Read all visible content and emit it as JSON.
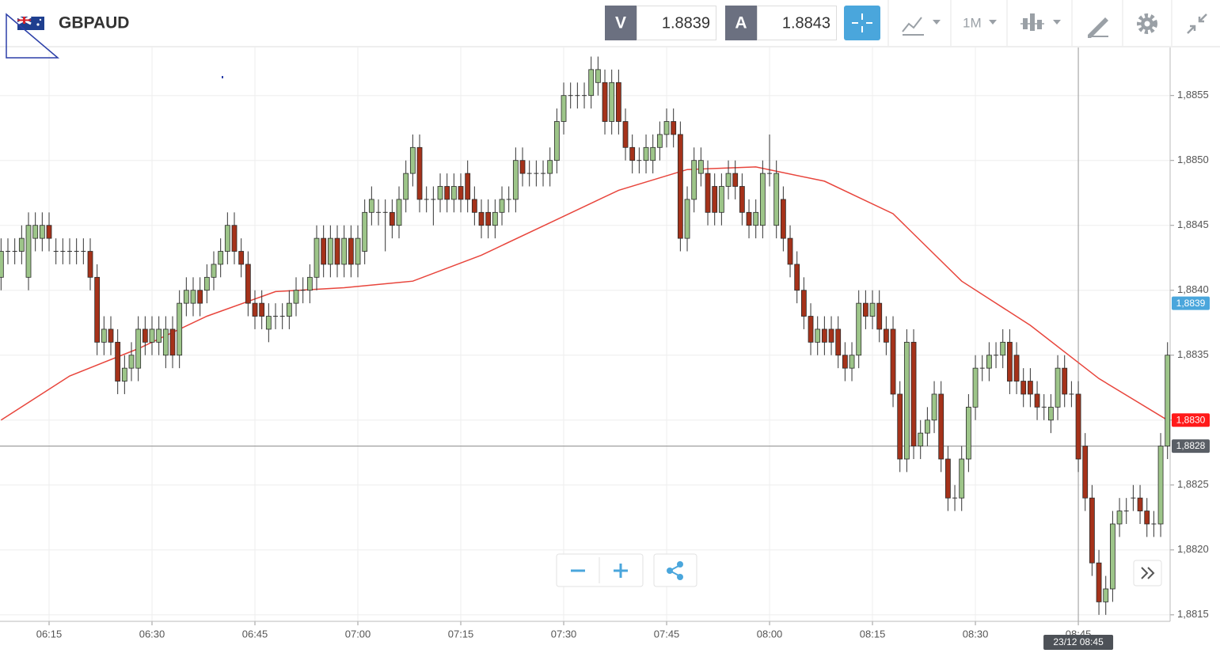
{
  "header": {
    "symbol": "GBPAUD",
    "bid_label": "V",
    "bid": 1.8839,
    "ask_label": "A",
    "ask": 1.8843,
    "timeframe": "1M"
  },
  "chart_data": {
    "type": "candlestick",
    "x": [
      "06:08",
      "06:09",
      "06:10",
      "06:11",
      "06:12",
      "06:13",
      "06:14",
      "06:15",
      "06:16",
      "06:17",
      "06:18",
      "06:19",
      "06:20",
      "06:21",
      "06:22",
      "06:23",
      "06:24",
      "06:25",
      "06:26",
      "06:27",
      "06:28",
      "06:29",
      "06:30",
      "06:31",
      "06:32",
      "06:33",
      "06:34",
      "06:35",
      "06:36",
      "06:37",
      "06:38",
      "06:39",
      "06:40",
      "06:41",
      "06:42",
      "06:43",
      "06:44",
      "06:45",
      "06:46",
      "06:47",
      "06:48",
      "06:49",
      "06:50",
      "06:51",
      "06:52",
      "06:53",
      "06:54",
      "06:55",
      "06:56",
      "06:57",
      "06:58",
      "06:59",
      "07:00",
      "07:01",
      "07:02",
      "07:03",
      "07:04",
      "07:05",
      "07:06",
      "07:07",
      "07:08",
      "07:09",
      "07:10",
      "07:11",
      "07:12",
      "07:13",
      "07:14",
      "07:15",
      "07:16",
      "07:17",
      "07:18",
      "07:19",
      "07:20",
      "07:21",
      "07:22",
      "07:23",
      "07:24",
      "07:25",
      "07:26",
      "07:27",
      "07:28",
      "07:29",
      "07:30",
      "07:31",
      "07:32",
      "07:33",
      "07:34",
      "07:35",
      "07:36",
      "07:37",
      "07:38",
      "07:39",
      "07:40",
      "07:41",
      "07:42",
      "07:43",
      "07:44",
      "07:45",
      "07:46",
      "07:47",
      "07:48",
      "07:49",
      "07:50",
      "07:51",
      "07:52",
      "07:53",
      "07:54",
      "07:55",
      "07:56",
      "07:57",
      "07:58",
      "07:59",
      "08:00",
      "08:01",
      "08:02",
      "08:03",
      "08:04",
      "08:05",
      "08:06",
      "08:07",
      "08:08",
      "08:09",
      "08:10",
      "08:11",
      "08:12",
      "08:13",
      "08:14",
      "08:15",
      "08:16",
      "08:17",
      "08:18",
      "08:19",
      "08:20",
      "08:21",
      "08:22",
      "08:23",
      "08:24",
      "08:25",
      "08:26",
      "08:27",
      "08:28",
      "08:29",
      "08:30",
      "08:31",
      "08:32",
      "08:33",
      "08:34",
      "08:35",
      "08:36",
      "08:37",
      "08:38",
      "08:39",
      "08:40",
      "08:41",
      "08:42",
      "08:43",
      "08:44",
      "08:45",
      "08:46",
      "08:47",
      "08:48",
      "08:49",
      "08:50",
      "08:51",
      "08:52",
      "08:53",
      "08:54",
      "08:55",
      "08:56",
      "08:57",
      "08:58"
    ],
    "open": [
      1.8841,
      1.8843,
      1.8843,
      1.8843,
      1.8841,
      1.8844,
      1.8844,
      1.8845,
      1.8843,
      1.8843,
      1.8843,
      1.8843,
      1.8843,
      1.8843,
      1.8841,
      1.8836,
      1.8837,
      1.8836,
      1.8833,
      1.8834,
      1.8834,
      1.8837,
      1.8836,
      1.8836,
      1.8835,
      1.8837,
      1.8835,
      1.8839,
      1.8839,
      1.884,
      1.884,
      1.8841,
      1.8842,
      1.8843,
      1.8845,
      1.8843,
      1.8842,
      1.8839,
      1.8839,
      1.8837,
      1.8838,
      1.8838,
      1.8838,
      1.8839,
      1.884,
      1.884,
      1.8841,
      1.8844,
      1.8842,
      1.8844,
      1.8842,
      1.8844,
      1.8842,
      1.8843,
      1.8846,
      1.8846,
      1.8846,
      1.8846,
      1.8845,
      1.8847,
      1.8849,
      1.8851,
      1.8847,
      1.8847,
      1.8847,
      1.8848,
      1.8847,
      1.8848,
      1.8849,
      1.8847,
      1.8846,
      1.8846,
      1.8845,
      1.8846,
      1.8847,
      1.8847,
      1.885,
      1.8849,
      1.8849,
      1.8849,
      1.8849,
      1.885,
      1.8853,
      1.8855,
      1.8855,
      1.8855,
      1.8855,
      1.8856,
      1.8856,
      1.8853,
      1.8856,
      1.8853,
      1.8851,
      1.885,
      1.885,
      1.885,
      1.8851,
      1.8852,
      1.8853,
      1.8852,
      1.8844,
      1.8847,
      1.8849,
      1.8849,
      1.8848,
      1.8846,
      1.8848,
      1.8849,
      1.8848,
      1.8846,
      1.8845,
      1.8845,
      1.8849,
      1.8845,
      1.8847,
      1.8844,
      1.8842,
      1.884,
      1.8838,
      1.8836,
      1.8837,
      1.8837,
      1.8837,
      1.8835,
      1.8834,
      1.8835,
      1.8839,
      1.8838,
      1.8839,
      1.8837,
      1.8837,
      1.8832,
      1.8827,
      1.8836,
      1.8828,
      1.8829,
      1.883,
      1.8832,
      1.8827,
      1.8824,
      1.8824,
      1.8827,
      1.8831,
      1.8834,
      1.8834,
      1.8835,
      1.8835,
      1.8836,
      1.8835,
      1.8833,
      1.8833,
      1.8832,
      1.8831,
      1.883,
      1.8831,
      1.8834,
      1.8832,
      1.8832,
      1.8828,
      1.8824,
      1.8819,
      1.8816,
      1.8817,
      1.8822,
      1.8823,
      1.8824,
      1.8824,
      1.8823,
      1.8822,
      1.8822,
      1.8828
    ],
    "high": [
      1.8844,
      1.8844,
      1.8844,
      1.8845,
      1.8846,
      1.8846,
      1.8846,
      1.8846,
      1.8844,
      1.8844,
      1.8844,
      1.8844,
      1.8844,
      1.8844,
      1.8842,
      1.8838,
      1.8838,
      1.8837,
      1.8835,
      1.8836,
      1.8838,
      1.8838,
      1.8838,
      1.8838,
      1.8838,
      1.8838,
      1.884,
      1.8841,
      1.8841,
      1.8841,
      1.8842,
      1.8843,
      1.8844,
      1.8846,
      1.8846,
      1.8844,
      1.8843,
      1.884,
      1.884,
      1.8839,
      1.8839,
      1.8839,
      1.884,
      1.8841,
      1.8841,
      1.8842,
      1.8845,
      1.8845,
      1.8845,
      1.8845,
      1.8845,
      1.8845,
      1.8845,
      1.8847,
      1.8848,
      1.8847,
      1.8847,
      1.8847,
      1.8848,
      1.885,
      1.8852,
      1.8852,
      1.8848,
      1.8848,
      1.8849,
      1.8849,
      1.8849,
      1.8849,
      1.885,
      1.8848,
      1.8847,
      1.8847,
      1.8847,
      1.8848,
      1.8848,
      1.8851,
      1.8851,
      1.885,
      1.885,
      1.885,
      1.8851,
      1.8854,
      1.8856,
      1.8856,
      1.8856,
      1.8856,
      1.8858,
      1.8858,
      1.8857,
      1.8857,
      1.8857,
      1.8854,
      1.8852,
      1.8851,
      1.8852,
      1.8852,
      1.8853,
      1.8854,
      1.8854,
      1.8853,
      1.8848,
      1.8851,
      1.8851,
      1.885,
      1.8849,
      1.8849,
      1.885,
      1.885,
      1.8849,
      1.8847,
      1.8847,
      1.885,
      1.8852,
      1.885,
      1.8848,
      1.8845,
      1.8843,
      1.8841,
      1.8839,
      1.8838,
      1.8838,
      1.8838,
      1.8838,
      1.8836,
      1.8836,
      1.884,
      1.884,
      1.884,
      1.884,
      1.8838,
      1.8838,
      1.8833,
      1.8837,
      1.8837,
      1.883,
      1.8831,
      1.8833,
      1.8833,
      1.8828,
      1.8825,
      1.8828,
      1.8832,
      1.8835,
      1.8835,
      1.8836,
      1.8836,
      1.8837,
      1.8837,
      1.8836,
      1.8834,
      1.8834,
      1.8833,
      1.8832,
      1.8832,
      1.8835,
      1.8835,
      1.8833,
      1.8833,
      1.8829,
      1.8825,
      1.882,
      1.8818,
      1.8823,
      1.8824,
      1.8824,
      1.8825,
      1.8825,
      1.8824,
      1.8823,
      1.8829,
      1.8836
    ],
    "low": [
      1.884,
      1.8842,
      1.8842,
      1.8842,
      1.884,
      1.8843,
      1.8843,
      1.8843,
      1.8842,
      1.8842,
      1.8842,
      1.8842,
      1.8842,
      1.884,
      1.8835,
      1.8835,
      1.8835,
      1.8832,
      1.8832,
      1.8833,
      1.8833,
      1.8835,
      1.8835,
      1.8835,
      1.8834,
      1.8834,
      1.8834,
      1.8838,
      1.8838,
      1.8838,
      1.8839,
      1.884,
      1.8841,
      1.8842,
      1.8842,
      1.8841,
      1.8838,
      1.8837,
      1.8837,
      1.8836,
      1.8837,
      1.8837,
      1.8837,
      1.8838,
      1.8839,
      1.8839,
      1.884,
      1.8841,
      1.8841,
      1.8841,
      1.8841,
      1.8841,
      1.8841,
      1.8842,
      1.8845,
      1.8845,
      1.8843,
      1.8844,
      1.8844,
      1.8846,
      1.8848,
      1.8846,
      1.8846,
      1.8845,
      1.8846,
      1.8846,
      1.8846,
      1.8846,
      1.8846,
      1.8845,
      1.8844,
      1.8844,
      1.8844,
      1.8845,
      1.8846,
      1.8846,
      1.8848,
      1.8848,
      1.8848,
      1.8848,
      1.8848,
      1.8849,
      1.8852,
      1.8854,
      1.8854,
      1.8854,
      1.8854,
      1.8855,
      1.8852,
      1.8852,
      1.8852,
      1.885,
      1.8849,
      1.8849,
      1.8849,
      1.8849,
      1.885,
      1.8851,
      1.8851,
      1.8843,
      1.8843,
      1.8846,
      1.8848,
      1.8845,
      1.8845,
      1.8845,
      1.8847,
      1.8847,
      1.8845,
      1.8844,
      1.8844,
      1.8844,
      1.8848,
      1.8844,
      1.8843,
      1.8841,
      1.8839,
      1.8837,
      1.8835,
      1.8835,
      1.8835,
      1.8835,
      1.8834,
      1.8833,
      1.8833,
      1.8834,
      1.8837,
      1.8837,
      1.8836,
      1.8835,
      1.8831,
      1.8826,
      1.8826,
      1.8827,
      1.8827,
      1.8828,
      1.8829,
      1.8826,
      1.8823,
      1.8823,
      1.8823,
      1.8826,
      1.883,
      1.8833,
      1.8833,
      1.8834,
      1.8834,
      1.8832,
      1.8832,
      1.8831,
      1.8831,
      1.883,
      1.883,
      1.8829,
      1.883,
      1.8831,
      1.8831,
      1.8826,
      1.8823,
      1.8818,
      1.8815,
      1.8815,
      1.8816,
      1.8821,
      1.8822,
      1.8823,
      1.8822,
      1.8821,
      1.8821,
      1.8821,
      1.8827
    ],
    "close": [
      1.8843,
      1.8843,
      1.8843,
      1.8844,
      1.8845,
      1.8845,
      1.8845,
      1.8844,
      1.8843,
      1.8843,
      1.8843,
      1.8843,
      1.8843,
      1.8841,
      1.8836,
      1.8837,
      1.8836,
      1.8833,
      1.8834,
      1.8835,
      1.8837,
      1.8836,
      1.8837,
      1.8837,
      1.8837,
      1.8835,
      1.8839,
      1.884,
      1.884,
      1.8839,
      1.8841,
      1.8842,
      1.8843,
      1.8845,
      1.8843,
      1.8842,
      1.8839,
      1.8838,
      1.8838,
      1.8838,
      1.8838,
      1.8838,
      1.8839,
      1.884,
      1.884,
      1.8841,
      1.8844,
      1.8842,
      1.8844,
      1.8842,
      1.8844,
      1.8842,
      1.8844,
      1.8846,
      1.8847,
      1.8846,
      1.8846,
      1.8845,
      1.8847,
      1.8849,
      1.8851,
      1.8847,
      1.8847,
      1.8847,
      1.8848,
      1.8847,
      1.8848,
      1.8847,
      1.8847,
      1.8846,
      1.8845,
      1.8845,
      1.8846,
      1.8847,
      1.8847,
      1.885,
      1.8849,
      1.8849,
      1.8849,
      1.8849,
      1.885,
      1.8853,
      1.8855,
      1.8855,
      1.8855,
      1.8855,
      1.8857,
      1.8857,
      1.8853,
      1.8856,
      1.8853,
      1.8851,
      1.885,
      1.885,
      1.8851,
      1.8851,
      1.8852,
      1.8853,
      1.8852,
      1.8844,
      1.8847,
      1.885,
      1.885,
      1.8846,
      1.8846,
      1.8848,
      1.8849,
      1.8848,
      1.8846,
      1.8845,
      1.8846,
      1.8849,
      1.8849,
      1.8849,
      1.8844,
      1.8842,
      1.884,
      1.8838,
      1.8836,
      1.8837,
      1.8836,
      1.8836,
      1.8835,
      1.8834,
      1.8835,
      1.8839,
      1.8838,
      1.8839,
      1.8837,
      1.8836,
      1.8832,
      1.8827,
      1.8836,
      1.8828,
      1.8829,
      1.883,
      1.8832,
      1.8827,
      1.8824,
      1.8824,
      1.8827,
      1.8831,
      1.8834,
      1.8834,
      1.8835,
      1.8835,
      1.8836,
      1.8833,
      1.8833,
      1.8832,
      1.8832,
      1.8831,
      1.8831,
      1.8831,
      1.8834,
      1.8832,
      1.8832,
      1.8827,
      1.8824,
      1.8819,
      1.8816,
      1.8817,
      1.8822,
      1.8823,
      1.8823,
      1.8824,
      1.8823,
      1.8822,
      1.8822,
      1.8828,
      1.8835
    ],
    "up_color": "#9dc589",
    "down_color": "#a5321a",
    "moving_average": {
      "color": "#e8453c",
      "x": [
        "06:08",
        "06:18",
        "06:28",
        "06:38",
        "06:48",
        "06:58",
        "07:08",
        "07:18",
        "07:28",
        "07:38",
        "07:48",
        "07:58",
        "08:08",
        "08:18",
        "08:28",
        "08:38",
        "08:48",
        "08:58"
      ],
      "values": [
        1.883,
        1.88334,
        1.88355,
        1.8838,
        1.88399,
        1.88402,
        1.88407,
        1.88427,
        1.88452,
        1.88477,
        1.88493,
        1.88495,
        1.88484,
        1.88459,
        1.88407,
        1.88373,
        1.88332,
        1.883
      ]
    },
    "ylim": [
      1.88145,
      1.88587
    ],
    "yticks": [
      {
        "value": 1.8815,
        "label": "1,8815"
      },
      {
        "value": 1.882,
        "label": "1,8820"
      },
      {
        "value": 1.8825,
        "label": "1,8825"
      },
      {
        "value": 1.883,
        "label": "1,8830"
      },
      {
        "value": 1.8835,
        "label": "1,8835"
      },
      {
        "value": 1.884,
        "label": "1,8840"
      },
      {
        "value": 1.8845,
        "label": "1,8845"
      },
      {
        "value": 1.885,
        "label": "1,8850"
      },
      {
        "value": 1.8855,
        "label": "1,8855"
      }
    ],
    "xticks": [
      "06:15",
      "06:30",
      "06:45",
      "07:00",
      "07:15",
      "07:30",
      "07:45",
      "08:00",
      "08:15",
      "08:30",
      "08:45"
    ],
    "grid": true,
    "price_lines": [
      {
        "value": 1.8839,
        "label": "1,8839",
        "color": "#4aa6dc",
        "line": false
      },
      {
        "value": 1.883,
        "label": "1,8830",
        "color": "#ff1a1a",
        "line": false
      },
      {
        "value": 1.8828,
        "label": "1,8828",
        "color": "#5a5f66",
        "line": true
      }
    ],
    "crosshair": {
      "x": "08:45",
      "label": "23/12 08:45"
    }
  }
}
